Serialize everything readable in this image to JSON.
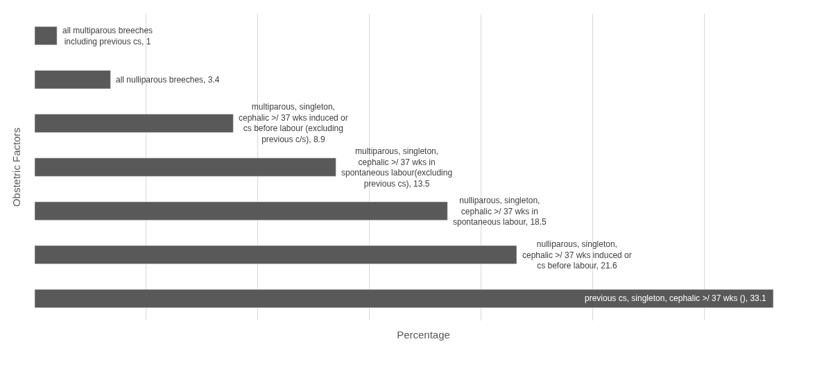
{
  "chart_data": {
    "type": "bar",
    "orientation": "horizontal",
    "xlabel": "Percentage",
    "ylabel": "Obstetric Factors",
    "categories": [
      null,
      null,
      null,
      null,
      null,
      null,
      null
    ],
    "values": [
      1,
      3.4,
      8.9,
      13.5,
      18.5,
      21.6,
      33.1
    ],
    "value_labels": [
      "all multiparous breeches including previous cs, 1",
      "all nulliparous breeches, 3.4",
      "multiparous, singleton, cephalic >/ 37 wks induced or cs before labour (excluding previous c/s), 8.9",
      "multiparous, singleton, cephalic >/ 37 wks in spontaneous labour(excluding previous cs), 13.5",
      "nulliparous, singleton, cephalic >/ 37 wks in spontaneous labour, 18.5",
      "nulliparous, singleton, cephalic >/ 37 wks induced or cs before labour, 21.6",
      "previous cs, singleton, cephalic >/ 37 wks (), 33.1"
    ],
    "color": "#595959",
    "grid": "x",
    "tick_labels": false
  }
}
